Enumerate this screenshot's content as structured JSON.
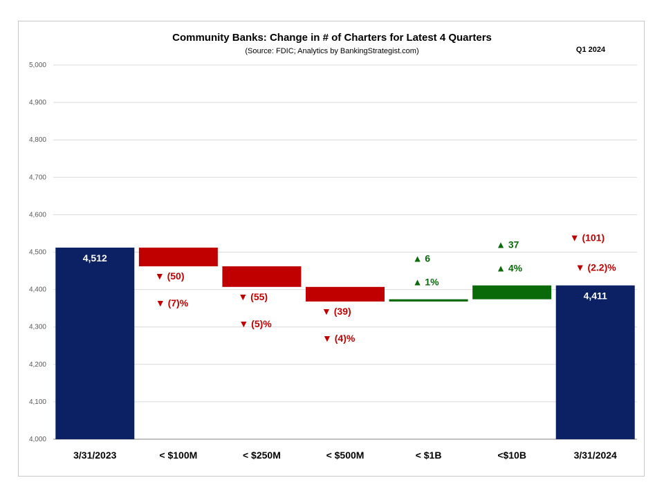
{
  "chart_data": {
    "type": "bar",
    "subtype": "waterfall",
    "title": "Community Banks:  Change in # of Charters for Latest 4 Quarters",
    "subtitle": "(Source: FDIC; Analytics by BankingStrategist.com)",
    "period": "Q1  2024",
    "ylim": [
      4000,
      5000
    ],
    "yticks": [
      4000,
      4100,
      4200,
      4300,
      4400,
      4500,
      4600,
      4700,
      4800,
      4900,
      5000
    ],
    "ytick_labels": [
      "4,000",
      "4,100",
      "4,200",
      "4,300",
      "4,400",
      "4,500",
      "4,600",
      "4,700",
      "4,800",
      "4,900",
      "5,000"
    ],
    "grid": true,
    "categories": [
      "3/31/2023",
      "< $100M",
      "< $250M",
      "< $500M",
      "< $1B",
      "<$10B",
      "3/31/2024"
    ],
    "bars": [
      {
        "category": "3/31/2023",
        "kind": "total",
        "start": 4000,
        "end": 4512,
        "label": "4,512"
      },
      {
        "category": "< $100M",
        "kind": "decrease",
        "start": 4512,
        "end": 4462,
        "change": "(50)",
        "pct": "(7)%"
      },
      {
        "category": "< $250M",
        "kind": "decrease",
        "start": 4462,
        "end": 4407,
        "change": "(55)",
        "pct": "(5)%"
      },
      {
        "category": "< $500M",
        "kind": "decrease",
        "start": 4407,
        "end": 4368,
        "change": "(39)",
        "pct": "(4)%"
      },
      {
        "category": "< $1B",
        "kind": "increase",
        "start": 4368,
        "end": 4374,
        "change": "6",
        "pct": "1%"
      },
      {
        "category": "<$10B",
        "kind": "increase",
        "start": 4374,
        "end": 4411,
        "change": "37",
        "pct": "4%"
      },
      {
        "category": "3/31/2024",
        "kind": "total",
        "start": 4000,
        "end": 4411,
        "label": "4,411",
        "change": "(101)",
        "pct": "(2.2)%"
      }
    ],
    "colors": {
      "total": "#0b2163",
      "decrease": "#c00000",
      "increase": "#0a6a0a",
      "grid": "#d9d9d9",
      "axis": "#808080"
    },
    "symbols": {
      "down": "▼",
      "up": "▲"
    }
  }
}
